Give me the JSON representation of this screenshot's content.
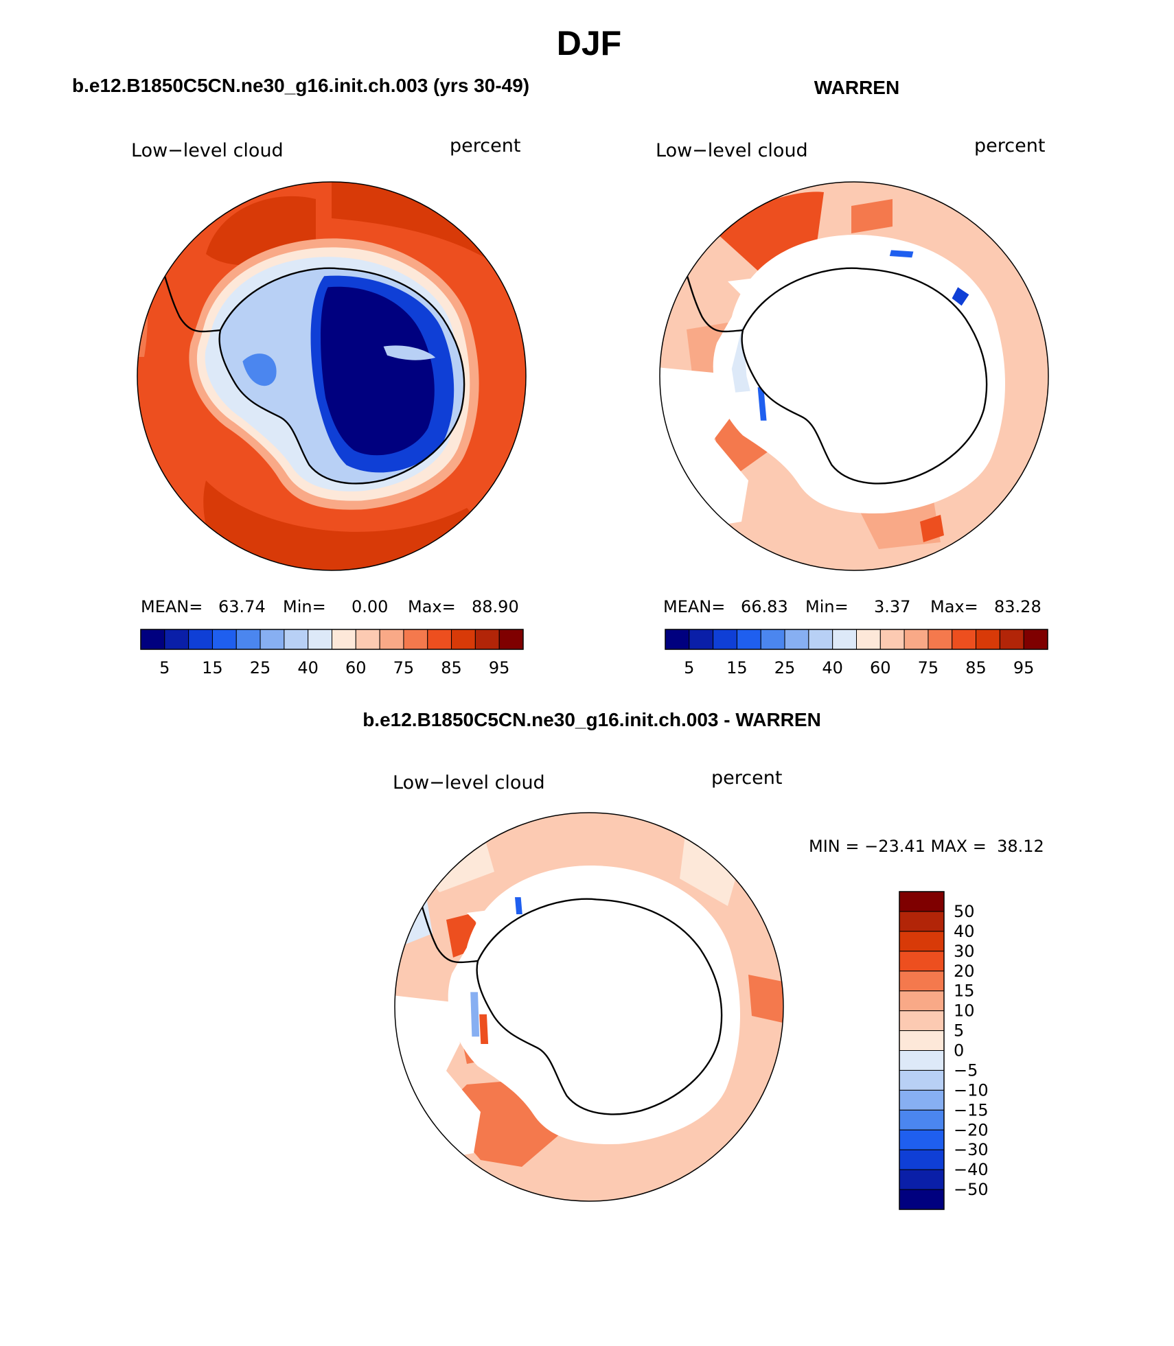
{
  "title": "DJF",
  "chart_data": [
    {
      "type": "contour-map",
      "projection": "south-polar-stereographic",
      "panel_title": "b.e12.B1850C5CN.ne30_g16.init.ch.003 (yrs 30-49)",
      "left_label": "Low−level cloud",
      "right_label": "percent",
      "stats": {
        "mean_label": "MEAN=",
        "mean": "63.74",
        "min_label": "Min=",
        "min": "0.00",
        "max_label": "Max=",
        "max": "88.90"
      },
      "colorbar": {
        "orientation": "horizontal",
        "levels": [
          5,
          10,
          15,
          20,
          25,
          30,
          40,
          50,
          60,
          70,
          75,
          80,
          85,
          90,
          95
        ],
        "tick_labels": [
          "5",
          "15",
          "25",
          "40",
          "60",
          "75",
          "85",
          "95"
        ]
      }
    },
    {
      "type": "contour-map",
      "projection": "south-polar-stereographic",
      "panel_title": "WARREN",
      "left_label": "Low−level cloud",
      "right_label": "percent",
      "stats": {
        "mean_label": "MEAN=",
        "mean": "66.83",
        "min_label": "Min=",
        "min": "3.37",
        "max_label": "Max=",
        "max": "83.28"
      },
      "colorbar": {
        "orientation": "horizontal",
        "levels": [
          5,
          10,
          15,
          20,
          25,
          30,
          40,
          50,
          60,
          70,
          75,
          80,
          85,
          90,
          95
        ],
        "tick_labels": [
          "5",
          "15",
          "25",
          "40",
          "60",
          "75",
          "85",
          "95"
        ]
      }
    },
    {
      "type": "contour-map",
      "projection": "south-polar-stereographic",
      "panel_title": "b.e12.B1850C5CN.ne30_g16.init.ch.003 - WARREN",
      "left_label": "Low−level cloud",
      "right_label": "percent",
      "minmax_text": "MIN = −23.41 MAX =  38.12",
      "colorbar": {
        "orientation": "vertical",
        "levels": [
          50,
          40,
          30,
          20,
          15,
          10,
          5,
          0,
          -5,
          -10,
          -15,
          -20,
          -30,
          -40,
          -50
        ],
        "tick_labels": [
          "50",
          "40",
          "30",
          "20",
          "15",
          "10",
          "5",
          "0",
          "−5",
          "−10",
          "−15",
          "−20",
          "−30",
          "−40",
          "−50"
        ]
      }
    }
  ],
  "palettes": {
    "abs": [
      "#00007f",
      "#0a1fa8",
      "#0f3fd6",
      "#1f5fef",
      "#4b86ef",
      "#87aff2",
      "#b8d0f5",
      "#dde9f8",
      "#fde8d9",
      "#fccab2",
      "#f9a987",
      "#f4794d",
      "#ed4f1f",
      "#d83a08",
      "#b22508",
      "#7f0000"
    ],
    "diff": [
      "#7f0000",
      "#b22508",
      "#d83a08",
      "#ed4f1f",
      "#f4794d",
      "#f9a987",
      "#fccab2",
      "#fde8d9",
      "#dde9f8",
      "#b8d0f5",
      "#87aff2",
      "#4b86ef",
      "#1f5fef",
      "#0f3fd6",
      "#0a1fa8",
      "#00007f"
    ]
  }
}
